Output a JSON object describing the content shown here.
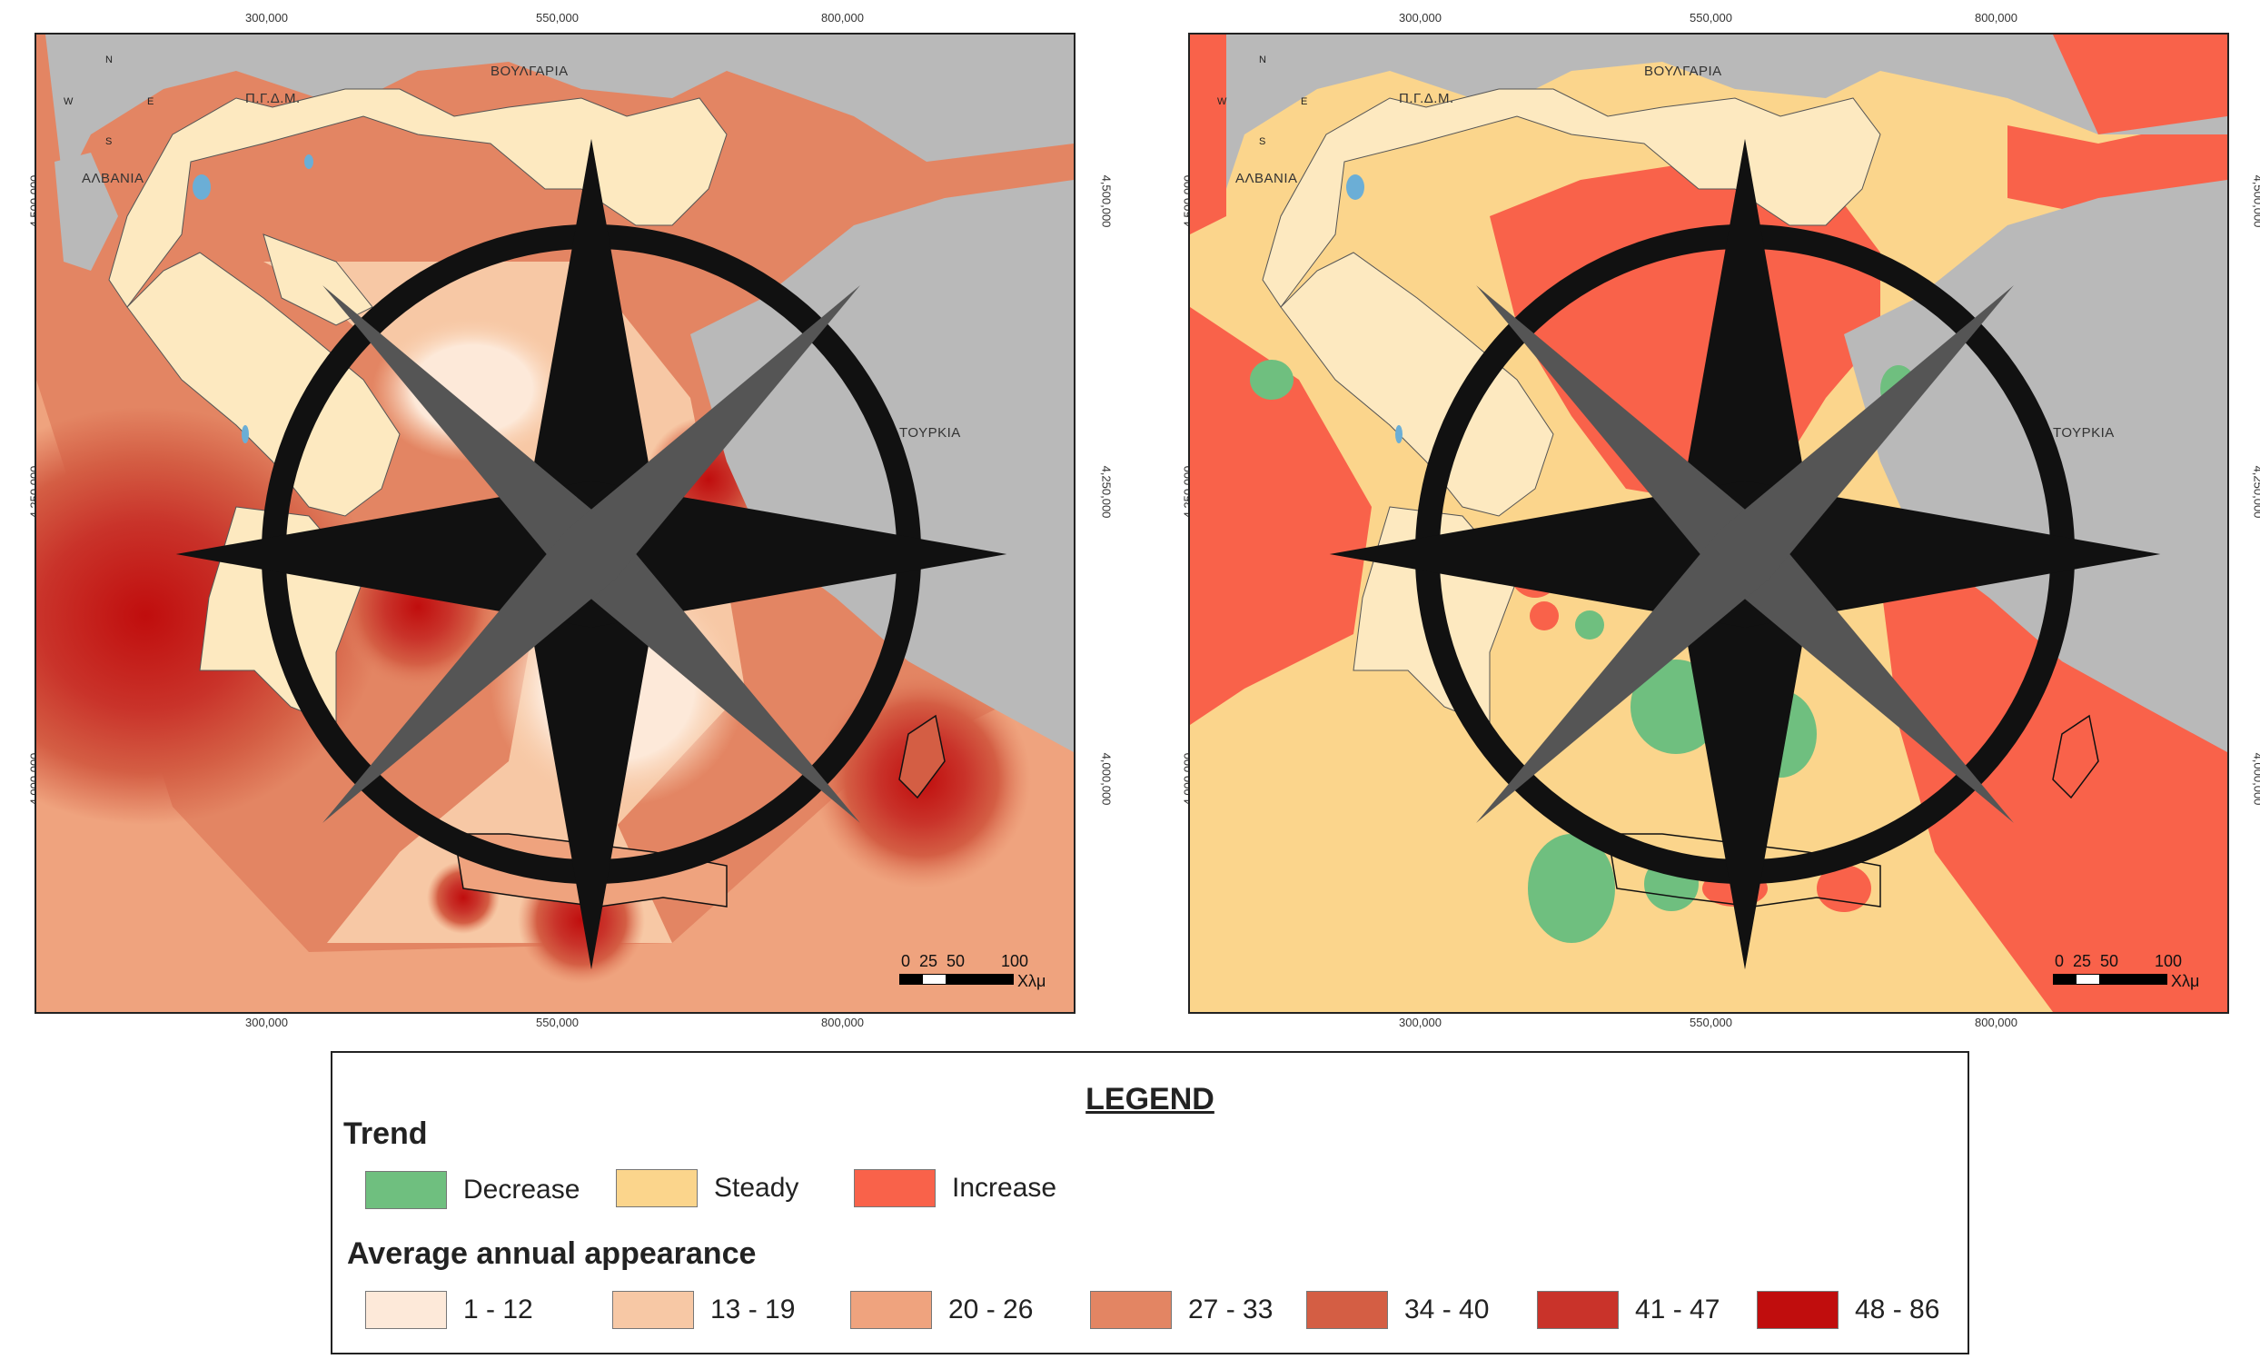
{
  "maps": {
    "left": {
      "ticks_top": [
        "300,000",
        "550,000",
        "800,000"
      ],
      "ticks_bottom": [
        "300,000",
        "550,000",
        "800,000"
      ],
      "ticks_side": [
        "4,500,000",
        "4,250,000",
        "4,000,000"
      ],
      "countries": {
        "fyrom": "Π.Γ.Δ.Μ.",
        "bulgaria": "ΒΟΥΛΓΑΡΙΑ",
        "albania": "ΑΛΒΑΝΙΑ",
        "turkey": "ΤΟΥΡΚΙΑ"
      },
      "compass": {
        "n": "N",
        "s": "S",
        "e": "E",
        "w": "W"
      },
      "scale": {
        "t0": "0",
        "t1": "25",
        "t2": "50",
        "t3": "100",
        "unit": "Χλμ"
      }
    },
    "right": {
      "ticks_top": [
        "300,000",
        "550,000",
        "800,000"
      ],
      "ticks_bottom": [
        "300,000",
        "550,000",
        "800,000"
      ],
      "ticks_side": [
        "4,500,000",
        "4,250,000",
        "4,000,000"
      ],
      "countries": {
        "fyrom": "Π.Γ.Δ.Μ.",
        "bulgaria": "ΒΟΥΛΓΑΡΙΑ",
        "albania": "ΑΛΒΑΝΙΑ",
        "turkey": "ΤΟΥΡΚΙΑ"
      },
      "compass": {
        "n": "N",
        "s": "S",
        "e": "E",
        "w": "W"
      },
      "scale": {
        "t0": "0",
        "t1": "25",
        "t2": "50",
        "t3": "100",
        "unit": "Χλμ"
      }
    }
  },
  "legend": {
    "title": "LEGEND",
    "trend_heading": "Trend",
    "trend_items": [
      {
        "label": "Decrease",
        "color": "#6fbf7f"
      },
      {
        "label": "Steady",
        "color": "#fbd58c"
      },
      {
        "label": "Increase",
        "color": "#f9624a"
      }
    ],
    "appearance_heading": "Average annual appearance",
    "appearance_items": [
      {
        "label": "1 - 12",
        "color": "#fde9d9"
      },
      {
        "label": "13 - 19",
        "color": "#f7c8a5"
      },
      {
        "label": "20 - 26",
        "color": "#efa37e"
      },
      {
        "label": "27 - 33",
        "color": "#e38563"
      },
      {
        "label": "34 - 40",
        "color": "#d45e44"
      },
      {
        "label": "41 - 47",
        "color": "#c9332a"
      },
      {
        "label": "48 - 86",
        "color": "#c00d0d"
      }
    ]
  },
  "colors": {
    "land_foreign": "#b9b9b9",
    "greece_land": "#fde9c0",
    "water_lakes": "#6baed6"
  }
}
